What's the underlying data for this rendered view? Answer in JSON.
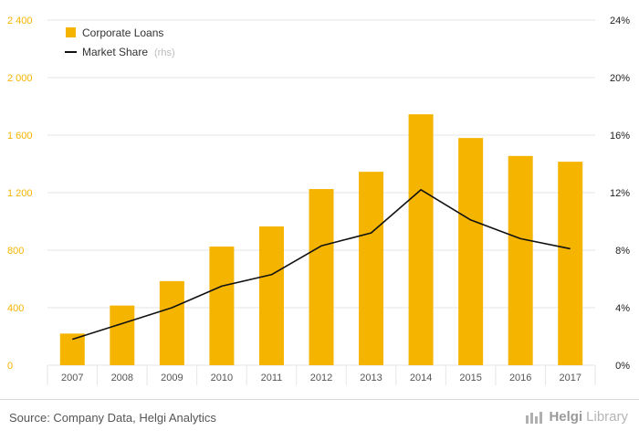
{
  "chart_data": {
    "type": "bar",
    "categories": [
      "2007",
      "2008",
      "2009",
      "2010",
      "2011",
      "2012",
      "2013",
      "2014",
      "2015",
      "2016",
      "2017"
    ],
    "series": [
      {
        "name": "Corporate Loans",
        "type": "bar",
        "axis": "left",
        "color": "#f5b400",
        "values": [
          220,
          415,
          585,
          825,
          965,
          1225,
          1345,
          1745,
          1580,
          1455,
          1415
        ]
      },
      {
        "name": "Market Share",
        "name_suffix": "(rhs)",
        "type": "line",
        "axis": "right",
        "color": "#111111",
        "values": [
          1.8,
          2.9,
          4.0,
          5.5,
          6.3,
          8.3,
          9.2,
          12.2,
          10.1,
          8.8,
          8.1
        ]
      }
    ],
    "yticks_left": [
      "0",
      "400",
      "800",
      "1 200",
      "1 600",
      "2 000",
      "2 400"
    ],
    "yticks_right": [
      "0%",
      "4%",
      "8%",
      "12%",
      "16%",
      "20%",
      "24%"
    ],
    "ylim_left": [
      0,
      2400
    ],
    "ylim_right": [
      0,
      24
    ],
    "legend_position": "top-left",
    "grid": true
  },
  "footer": {
    "source": "Source: Company Data, Helgi Analytics",
    "brand_part1": "Helgi",
    "brand_part2": "Library"
  },
  "colors": {
    "left_axis_text": "#f5b400",
    "right_axis_text": "#222222",
    "grid": "#e6e6e6",
    "xaxis_text": "#555555"
  }
}
